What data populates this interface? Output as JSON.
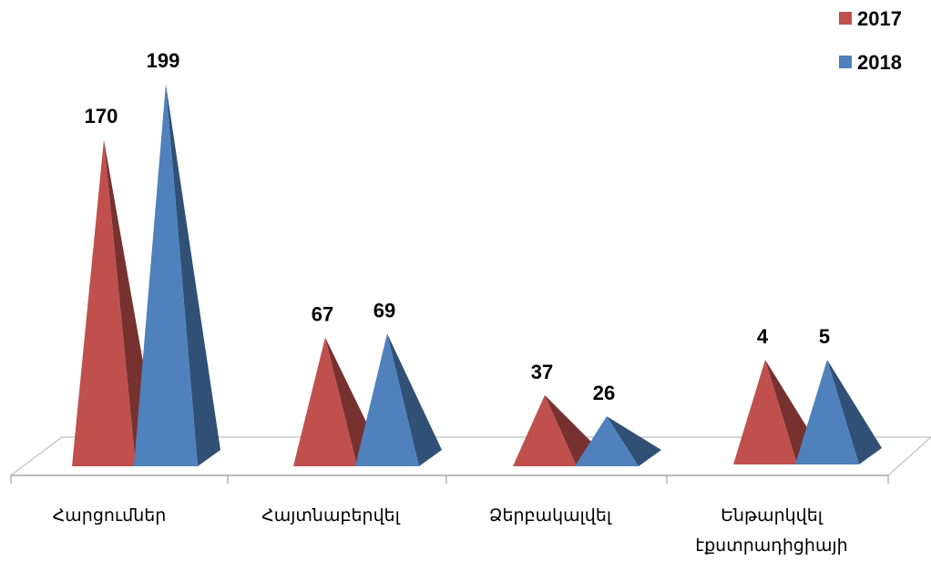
{
  "chart_data": {
    "type": "bar",
    "style": "3d-pyramid",
    "categories": [
      [
        "Հարցումներ"
      ],
      [
        "Հայտնաբերվել"
      ],
      [
        "Ձերբակալվել"
      ],
      [
        "Ենթարկվել",
        "էքստրադիցիայի"
      ]
    ],
    "series": [
      {
        "name": "2017",
        "color": "#c0504d",
        "values": [
          170,
          67,
          37,
          4
        ]
      },
      {
        "name": "2018",
        "color": "#4f81bd",
        "values": [
          199,
          69,
          26,
          5
        ]
      }
    ],
    "ylim": [
      0,
      199
    ],
    "legend": "top-right",
    "grid": false,
    "data_labels": true
  }
}
